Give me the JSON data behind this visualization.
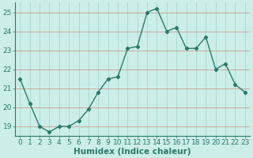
{
  "x": [
    0,
    1,
    2,
    3,
    4,
    5,
    6,
    7,
    8,
    9,
    10,
    11,
    12,
    13,
    14,
    15,
    16,
    17,
    18,
    19,
    20,
    21,
    22,
    23
  ],
  "y": [
    21.5,
    20.2,
    19.0,
    18.7,
    19.0,
    19.0,
    19.3,
    19.9,
    20.8,
    21.5,
    21.6,
    23.1,
    23.2,
    25.0,
    25.2,
    24.0,
    24.2,
    23.1,
    23.1,
    23.7,
    22.0,
    22.3,
    21.2,
    20.8
  ],
  "line_color": "#2a7a6a",
  "marker": "D",
  "marker_size": 2.2,
  "bg_color": "#cceee8",
  "grid_color_v": "#a8d8d2",
  "grid_color_h": "#cc9999",
  "xlabel": "Humidex (Indice chaleur)",
  "xlim": [
    -0.5,
    23.5
  ],
  "ylim": [
    18.5,
    25.5
  ],
  "yticks": [
    19,
    20,
    21,
    22,
    23,
    24,
    25
  ],
  "xticks": [
    0,
    1,
    2,
    3,
    4,
    5,
    6,
    7,
    8,
    9,
    10,
    11,
    12,
    13,
    14,
    15,
    16,
    17,
    18,
    19,
    20,
    21,
    22,
    23
  ],
  "xlabel_fontsize": 7.5,
  "tick_fontsize": 6.5,
  "axis_color": "#2a7a6a"
}
